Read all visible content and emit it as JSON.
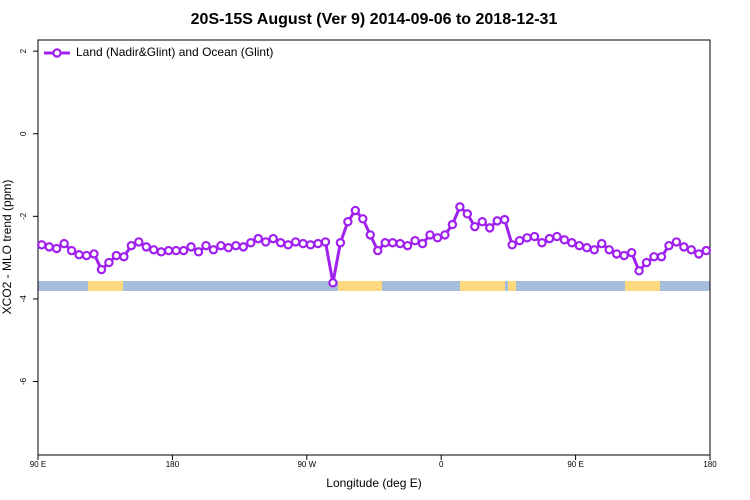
{
  "chart_data": {
    "type": "line",
    "title": "20S-15S August (Ver 9)   2014-09-06 to 2018-12-31",
    "x_label": "Longitude (deg E)",
    "y_label": "XCO2 - MLO trend (ppm)",
    "xlim": [
      -270,
      180
    ],
    "ylim": [
      -7.78,
      2.27
    ],
    "xticks": [
      {
        "value": -270,
        "label": "90 E"
      },
      {
        "value": -180,
        "label": "180"
      },
      {
        "value": -90,
        "label": "90 W"
      },
      0,
      {
        "value": 90,
        "label": "90 E"
      },
      180
    ],
    "yticks": [
      2,
      0,
      -2,
      -4,
      -6
    ],
    "legend": "top-left",
    "x": [
      -267.5,
      -262.5,
      -257.5,
      -252.5,
      -247.5,
      -242.5,
      -237.5,
      -232.5,
      -227.5,
      -222.5,
      -217.5,
      -212.5,
      -207.5,
      -202.5,
      -197.5,
      -192.5,
      -187.5,
      -182.5,
      -177.5,
      -172.5,
      -167.5,
      -162.5,
      -157.5,
      -152.5,
      -147.5,
      -142.5,
      -137.5,
      -132.5,
      -127.5,
      -122.5,
      -117.5,
      -112.5,
      -107.5,
      -102.5,
      -97.5,
      -92.5,
      -87.5,
      -82.5,
      -77.5,
      -72.5,
      -67.5,
      -62.5,
      -57.5,
      -52.5,
      -47.5,
      -42.5,
      -37.5,
      -32.5,
      -27.5,
      -22.5,
      -17.5,
      -12.5,
      -7.5,
      -2.5,
      2.5,
      7.5,
      12.5,
      17.5,
      22.5,
      27.5,
      32.5,
      37.5,
      42.5,
      47.5,
      52.5,
      57.5,
      62.5,
      67.5,
      72.5,
      77.5,
      82.5,
      87.5,
      92.5,
      97.5,
      102.5,
      107.5,
      112.5,
      117.5,
      122.5,
      127.5,
      132.5,
      137.5,
      142.5,
      147.5,
      152.5,
      157.5,
      162.5,
      167.5,
      172.5,
      177.5
    ],
    "series": [
      {
        "name": "Land (Nadir&Glint) and Ocean (Glint)",
        "color": "#a020f0",
        "values": [
          -2.69,
          -2.74,
          -2.78,
          -2.66,
          -2.83,
          -2.93,
          -2.95,
          -2.91,
          -3.29,
          -3.12,
          -2.95,
          -2.98,
          -2.71,
          -2.62,
          -2.74,
          -2.81,
          -2.86,
          -2.83,
          -2.83,
          -2.83,
          -2.74,
          -2.86,
          -2.71,
          -2.81,
          -2.71,
          -2.76,
          -2.71,
          -2.74,
          -2.64,
          -2.54,
          -2.62,
          -2.54,
          -2.64,
          -2.69,
          -2.62,
          -2.66,
          -2.69,
          -2.66,
          -2.62,
          -3.61,
          -2.64,
          -2.13,
          -1.86,
          -2.06,
          -2.45,
          -2.83,
          -2.64,
          -2.64,
          -2.66,
          -2.71,
          -2.59,
          -2.66,
          -2.45,
          -2.52,
          -2.45,
          -2.2,
          -1.77,
          -1.94,
          -2.25,
          -2.13,
          -2.28,
          -2.11,
          -2.08,
          -2.69,
          -2.59,
          -2.52,
          -2.49,
          -2.64,
          -2.54,
          -2.49,
          -2.57,
          -2.64,
          -2.71,
          -2.76,
          -2.81,
          -2.66,
          -2.81,
          -2.91,
          -2.95,
          -2.88,
          -3.32,
          -3.12,
          -2.98,
          -2.98,
          -2.71,
          -2.62,
          -2.74,
          -2.81,
          -2.91,
          -2.83
        ]
      }
    ]
  }
}
